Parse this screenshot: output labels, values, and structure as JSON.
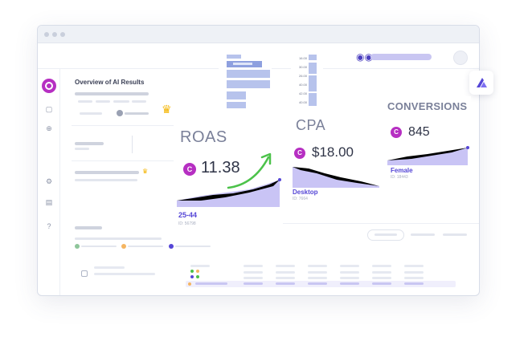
{
  "window": {
    "panel_title": "Overview of AI Results"
  },
  "sidebar": {
    "help_label": "?"
  },
  "cards": {
    "roas": {
      "title": "ROAS",
      "badge": "C",
      "value": "11.38",
      "label": "25-44",
      "id": "ID: 56798"
    },
    "cpa": {
      "title": "CPA",
      "badge": "C",
      "value": "$18.00",
      "label": "Desktop",
      "id": "ID: 7664"
    },
    "conversions": {
      "title": "CONVERSIONS",
      "badge": "C",
      "value": "845",
      "label": "Female",
      "id": "ID: 18443"
    }
  },
  "bar_chart_ticks": [
    "16.00",
    "30.00",
    "26.00",
    "40.00",
    "42.00",
    "40.00"
  ],
  "colors": {
    "accent": "#5546d6",
    "brand": "#b62fc2",
    "chart_fill": "#c9c4f5",
    "arrow": "#4cc24a",
    "crown": "#f4b400"
  },
  "icons": {
    "crown": "crown-icon",
    "binocular": "binocular-icon",
    "arrow": "trend-up-arrow-icon"
  }
}
